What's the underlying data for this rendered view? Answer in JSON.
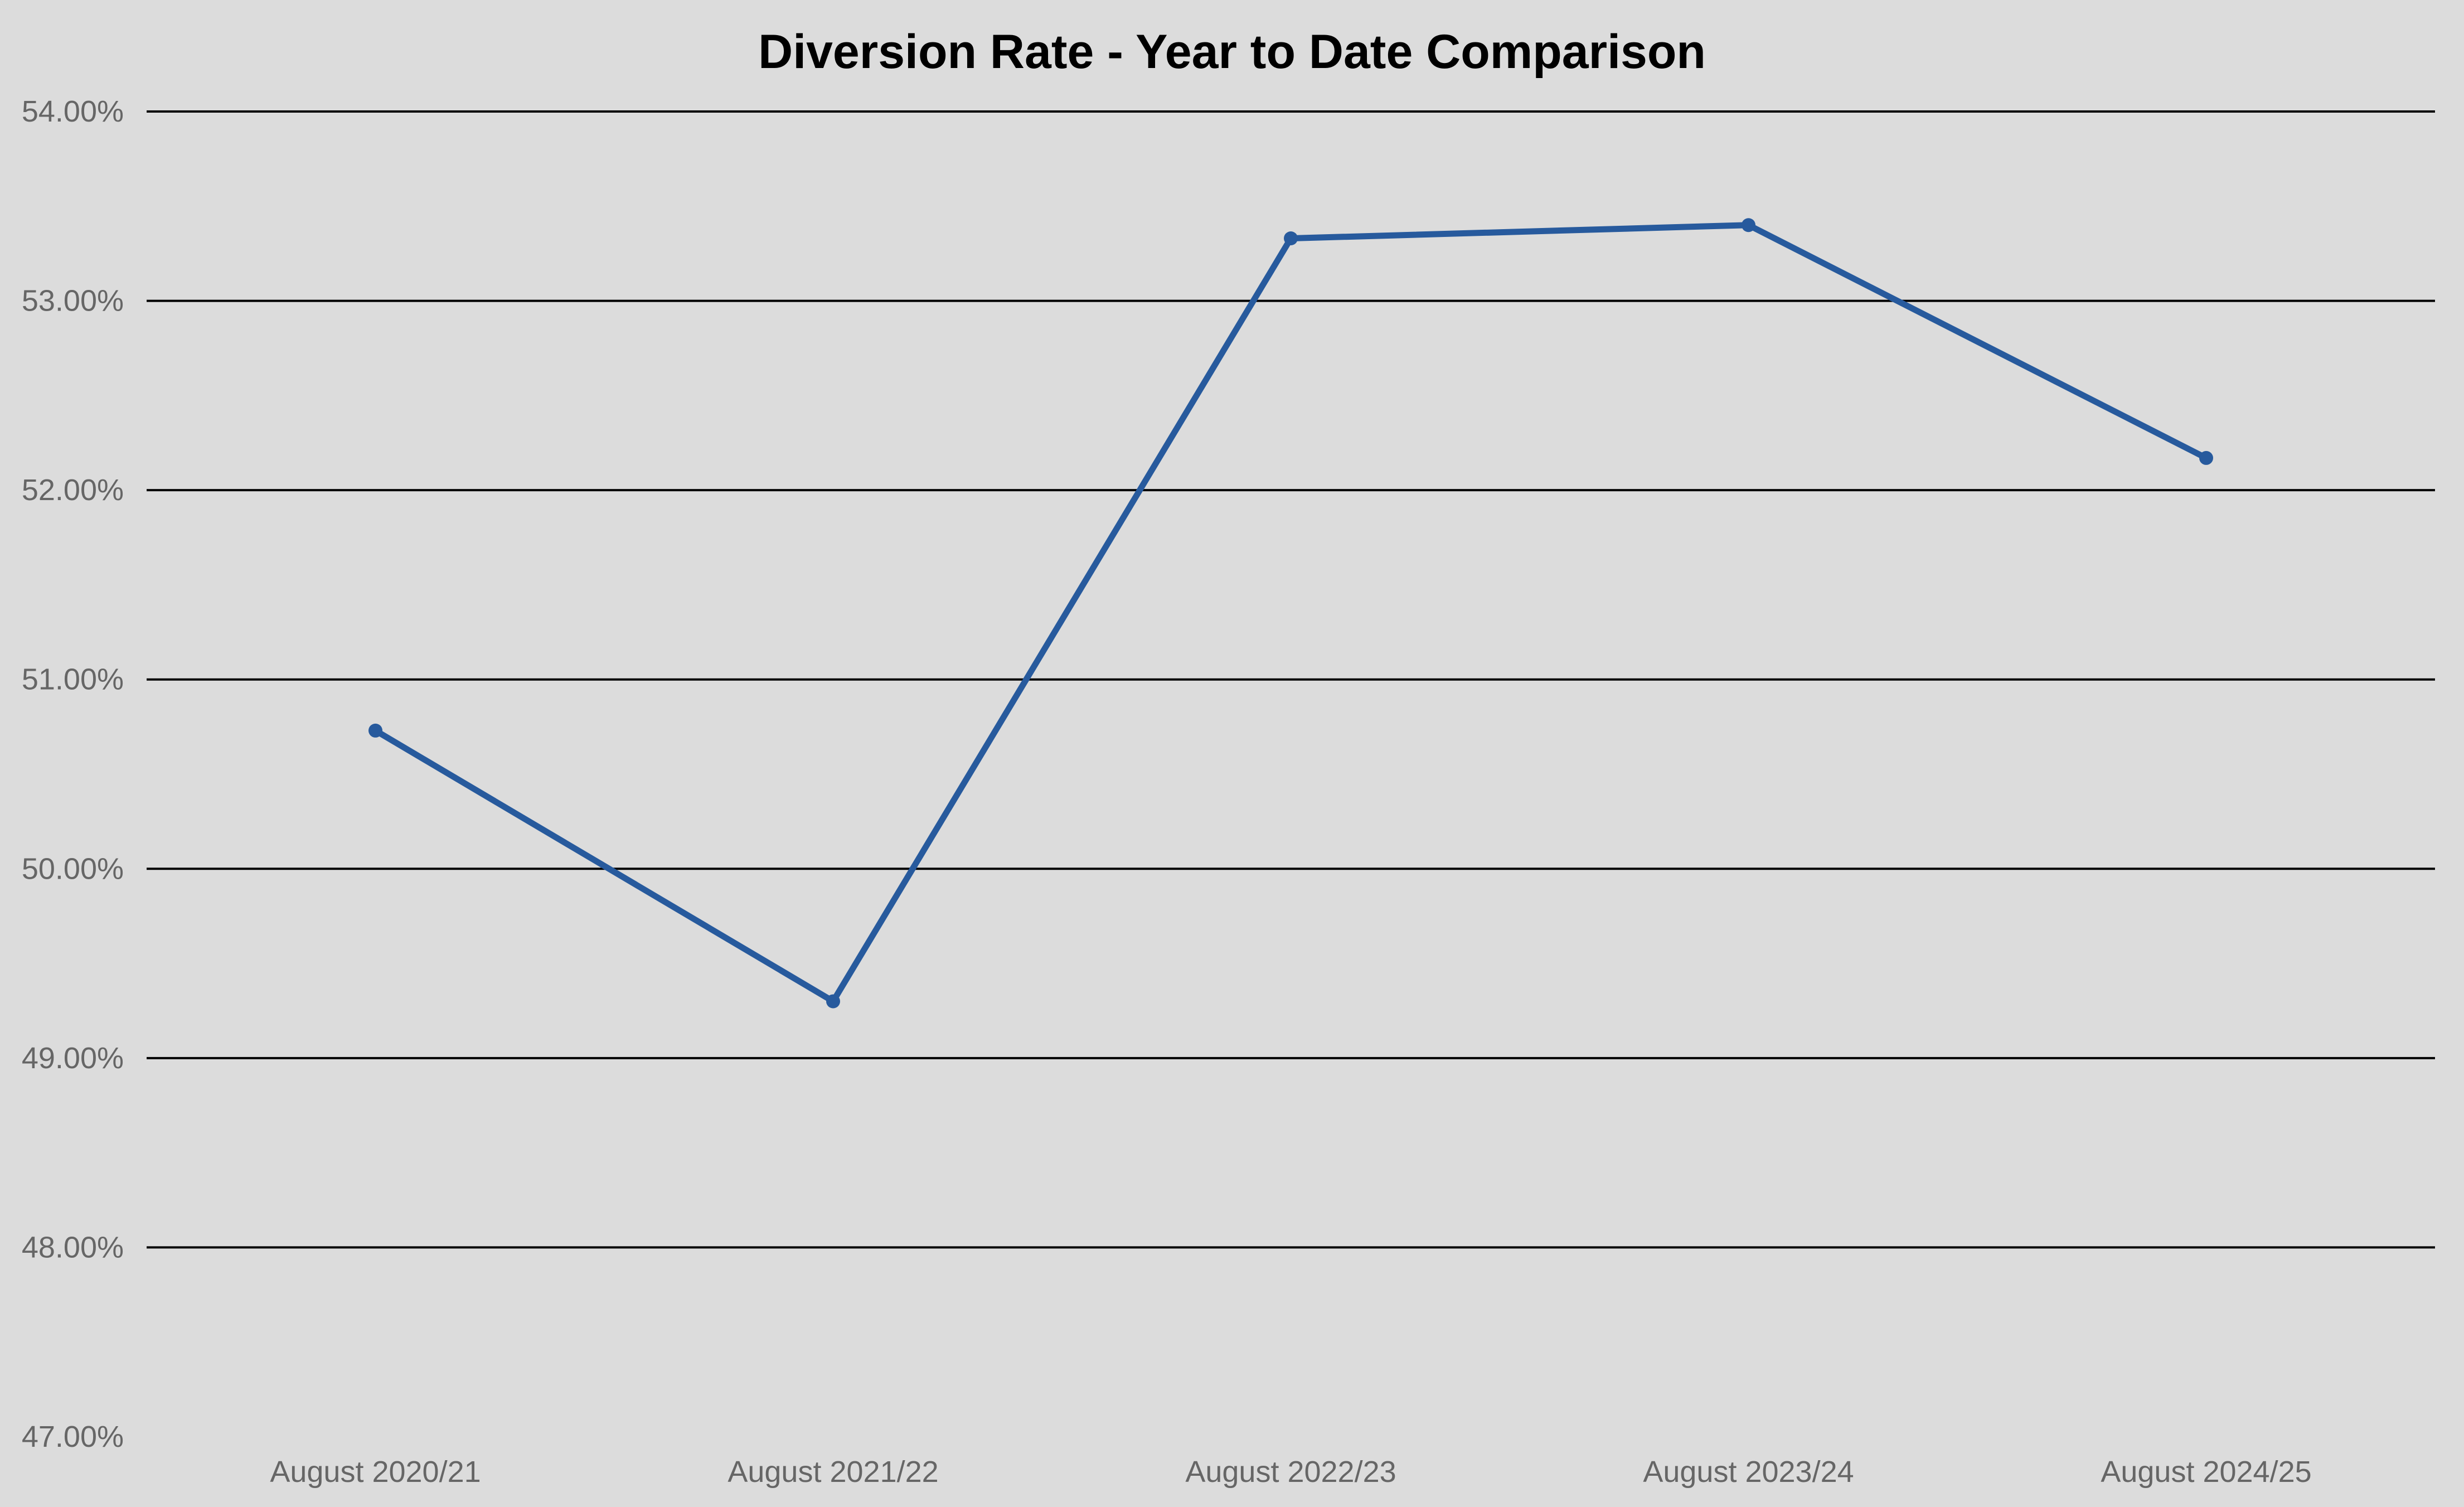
{
  "chart_data": {
    "type": "line",
    "title": "Diversion Rate - Year to Date Comparison",
    "categories": [
      "August 2020/21",
      "August 2021/22",
      "August 2022/23",
      "August 2023/24",
      "August 2024/25"
    ],
    "series": [
      {
        "color": "#275A9D",
        "values": [
          50.73,
          49.3,
          53.33,
          53.4,
          52.17
        ]
      }
    ],
    "ylim": [
      47,
      54
    ],
    "ytick_step": 1,
    "yticks": [
      {
        "value": 54,
        "label": "54.00%",
        "grid": true
      },
      {
        "value": 53,
        "label": "53.00%",
        "grid": true
      },
      {
        "value": 52,
        "label": "52.00%",
        "grid": true
      },
      {
        "value": 51,
        "label": "51.00%",
        "grid": true
      },
      {
        "value": 50,
        "label": "50.00%",
        "grid": true
      },
      {
        "value": 49,
        "label": "49.00%",
        "grid": true
      },
      {
        "value": 48,
        "label": "48.00%",
        "grid": true
      },
      {
        "value": 47,
        "label": "47.00%",
        "grid": false
      }
    ],
    "grid": "horizontal",
    "legend": "none",
    "colors": {
      "background": "#DCDCDC",
      "line": "#275A9D",
      "gridline": "#000000",
      "tick_label": "#666666",
      "title": "#000000"
    }
  }
}
